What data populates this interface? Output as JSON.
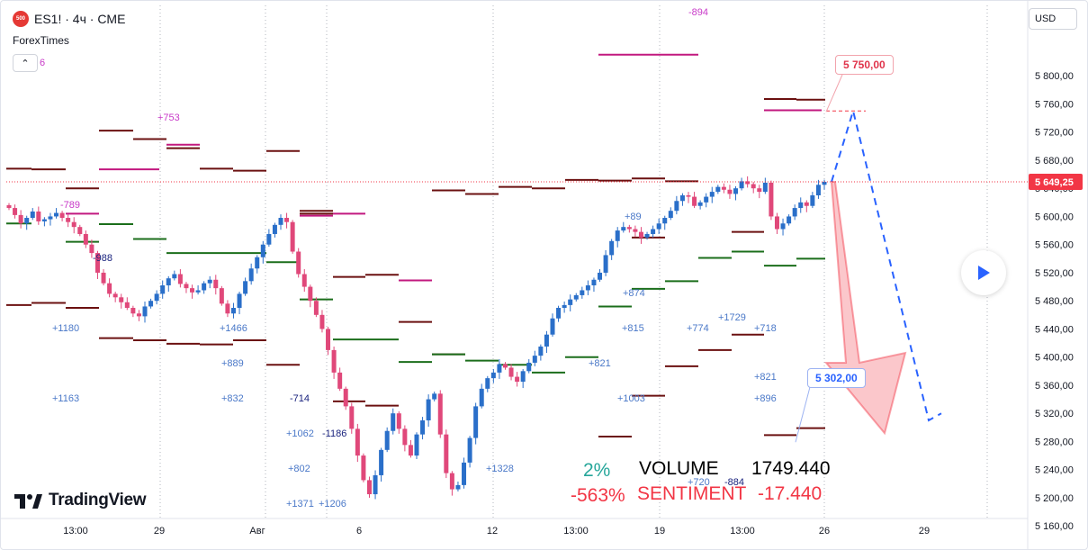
{
  "header": {
    "symbol_badge": "500",
    "symbol_text": "ES1! · 4ч · CME",
    "source": "ForexTimes",
    "collapse_count": "6"
  },
  "price_axis": {
    "currency": "USD",
    "ticks": [
      "5 800,00",
      "5 760,00",
      "5 720,00",
      "5 680,00",
      "5 640,00",
      "5 600,00",
      "5 560,00",
      "5 520,00",
      "5 480,00",
      "5 440,00",
      "5 400,00",
      "5 360,00",
      "5 320,00",
      "5 280,00",
      "5 240,00",
      "5 200,00",
      "5 160,00"
    ],
    "last_price": "5 649,25",
    "last_price_value": 5649.25,
    "colors": {
      "last_price_bg": "#f23645"
    }
  },
  "time_axis": {
    "labels": [
      "13:00",
      "29",
      "Авг",
      "6",
      "12",
      "13:00",
      "19",
      "13:00",
      "26",
      "29"
    ]
  },
  "annotations": {
    "target_up": "5 750,00",
    "target_down": "5 302,00",
    "level_labels": [
      "-894",
      "+753",
      "-789",
      "-988",
      "+1180",
      "+1466",
      "+889",
      "+832",
      "+1163",
      "-714",
      "+1062",
      "-1186",
      "+802",
      "+1371",
      "+1206",
      "+1328",
      "+874",
      "+815",
      "+821",
      "+1003",
      "+774",
      "+1729",
      "+718",
      "+821",
      "+896",
      "+720",
      "-884",
      "+89"
    ]
  },
  "stats": {
    "pct_top": "2%",
    "pct_bottom": "-563%",
    "volume_label": "VOLUME",
    "volume_value": "1749.440",
    "sentiment_label": "SENTIMENT",
    "sentiment_value": "-17.440",
    "colors": {
      "positive": "#26a69a",
      "negative": "#f23645",
      "text": "#000000"
    }
  },
  "branding": {
    "logo_text": "TradingView"
  },
  "chart_data": {
    "type": "candlestick",
    "title": "ES1! · 4ч · CME",
    "ylim": [
      5140,
      5830
    ],
    "y_ticks": [
      5800,
      5760,
      5720,
      5680,
      5640,
      5600,
      5560,
      5520,
      5480,
      5440,
      5400,
      5360,
      5320,
      5280,
      5240,
      5200,
      5160
    ],
    "x_ticks": [
      "13:00",
      "29",
      "Авг",
      "6",
      "12",
      "13:00",
      "19",
      "13:00",
      "26",
      "29"
    ],
    "grid": false,
    "colors": {
      "up": "#2a6fc9",
      "down": "#e0487a",
      "last_price_line": "#f23645"
    },
    "close_path": [
      5612,
      5602,
      5590,
      5598,
      5607,
      5593,
      5596,
      5600,
      5605,
      5598,
      5592,
      5585,
      5575,
      5560,
      5548,
      5520,
      5505,
      5490,
      5485,
      5478,
      5470,
      5462,
      5458,
      5472,
      5480,
      5490,
      5502,
      5512,
      5518,
      5504,
      5498,
      5492,
      5495,
      5505,
      5510,
      5498,
      5476,
      5462,
      5470,
      5490,
      5508,
      5526,
      5542,
      5560,
      5575,
      5588,
      5598,
      5592,
      5550,
      5518,
      5500,
      5480,
      5460,
      5440,
      5410,
      5378,
      5355,
      5330,
      5298,
      5260,
      5225,
      5205,
      5232,
      5268,
      5295,
      5320,
      5298,
      5275,
      5260,
      5290,
      5310,
      5340,
      5348,
      5290,
      5235,
      5212,
      5218,
      5250,
      5285,
      5330,
      5355,
      5370,
      5378,
      5390,
      5385,
      5372,
      5365,
      5380,
      5392,
      5402,
      5415,
      5432,
      5455,
      5470,
      5474,
      5482,
      5488,
      5495,
      5502,
      5510,
      5520,
      5545,
      5565,
      5580,
      5585,
      5582,
      5578,
      5570,
      5575,
      5582,
      5590,
      5598,
      5608,
      5622,
      5630,
      5628,
      5615,
      5620,
      5628,
      5635,
      5642,
      5638,
      5632,
      5640,
      5650,
      5646,
      5640,
      5635,
      5648,
      5600,
      5582,
      5590,
      5600,
      5612,
      5620,
      5615,
      5630,
      5645,
      5649.25
    ],
    "projection_up": {
      "from": 5649.25,
      "peak": 5750,
      "end": 5310
    },
    "projection_down": {
      "from": 5649.25,
      "target": 5302
    },
    "levels": [
      {
        "x0": 7,
        "x1": 35,
        "y": 5668,
        "c": "dark"
      },
      {
        "x0": 35,
        "x1": 73,
        "y": 5667,
        "c": "dark"
      },
      {
        "x0": 73,
        "x1": 110,
        "y": 5640,
        "c": "dark"
      },
      {
        "x0": 110,
        "x1": 148,
        "y": 5722,
        "c": "dark"
      },
      {
        "x0": 148,
        "x1": 185,
        "y": 5710,
        "c": "dark"
      },
      {
        "x0": 185,
        "x1": 222,
        "y": 5697,
        "c": "dark"
      },
      {
        "x0": 222,
        "x1": 259,
        "y": 5668,
        "c": "dark"
      },
      {
        "x0": 259,
        "x1": 296,
        "y": 5665,
        "c": "dark"
      },
      {
        "x0": 296,
        "x1": 333,
        "y": 5693,
        "c": "dark"
      },
      {
        "x0": 333,
        "x1": 370,
        "y": 5604,
        "c": "dark"
      },
      {
        "x0": 480,
        "x1": 517,
        "y": 5637,
        "c": "dark"
      },
      {
        "x0": 517,
        "x1": 554,
        "y": 5632,
        "c": "dark"
      },
      {
        "x0": 554,
        "x1": 591,
        "y": 5642,
        "c": "dark"
      },
      {
        "x0": 591,
        "x1": 628,
        "y": 5640,
        "c": "dark"
      },
      {
        "x0": 628,
        "x1": 665,
        "y": 5652,
        "c": "dark"
      },
      {
        "x0": 665,
        "x1": 702,
        "y": 5651,
        "c": "dark"
      },
      {
        "x0": 702,
        "x1": 739,
        "y": 5654,
        "c": "dark"
      },
      {
        "x0": 739,
        "x1": 776,
        "y": 5650,
        "c": "dark"
      },
      {
        "x0": 849,
        "x1": 885,
        "y": 5767,
        "c": "dark"
      },
      {
        "x0": 885,
        "x1": 917,
        "y": 5766,
        "c": "dark"
      },
      {
        "x0": 7,
        "x1": 35,
        "y": 5474,
        "c": "dark"
      },
      {
        "x0": 35,
        "x1": 73,
        "y": 5477,
        "c": "dark"
      },
      {
        "x0": 73,
        "x1": 110,
        "y": 5470,
        "c": "dark"
      },
      {
        "x0": 110,
        "x1": 148,
        "y": 5427,
        "c": "dark"
      },
      {
        "x0": 148,
        "x1": 185,
        "y": 5424,
        "c": "dark"
      },
      {
        "x0": 185,
        "x1": 222,
        "y": 5419,
        "c": "dark"
      },
      {
        "x0": 222,
        "x1": 259,
        "y": 5418,
        "c": "dark"
      },
      {
        "x0": 259,
        "x1": 296,
        "y": 5424,
        "c": "dark"
      },
      {
        "x0": 296,
        "x1": 333,
        "y": 5389,
        "c": "dark"
      },
      {
        "x0": 370,
        "x1": 406,
        "y": 5514,
        "c": "dark"
      },
      {
        "x0": 406,
        "x1": 443,
        "y": 5517,
        "c": "dark"
      },
      {
        "x0": 370,
        "x1": 406,
        "y": 5337,
        "c": "dark"
      },
      {
        "x0": 406,
        "x1": 443,
        "y": 5331,
        "c": "dark"
      },
      {
        "x0": 443,
        "x1": 480,
        "y": 5450,
        "c": "dark"
      },
      {
        "x0": 480,
        "x1": 517,
        "y": 5404,
        "c": "dark"
      },
      {
        "x0": 665,
        "x1": 702,
        "y": 5287,
        "c": "dark"
      },
      {
        "x0": 702,
        "x1": 739,
        "y": 5345,
        "c": "dark"
      },
      {
        "x0": 739,
        "x1": 776,
        "y": 5387,
        "c": "dark"
      },
      {
        "x0": 813,
        "x1": 849,
        "y": 5432,
        "c": "dark"
      },
      {
        "x0": 849,
        "x1": 885,
        "y": 5289,
        "c": "dark"
      },
      {
        "x0": 885,
        "x1": 917,
        "y": 5299,
        "c": "dark"
      },
      {
        "x0": 776,
        "x1": 813,
        "y": 5410,
        "c": "dark"
      },
      {
        "x0": 333,
        "x1": 370,
        "y": 5608,
        "c": "dark"
      },
      {
        "x0": 7,
        "x1": 35,
        "y": 5590,
        "c": "green"
      },
      {
        "x0": 73,
        "x1": 110,
        "y": 5564,
        "c": "green"
      },
      {
        "x0": 110,
        "x1": 148,
        "y": 5589,
        "c": "green"
      },
      {
        "x0": 148,
        "x1": 185,
        "y": 5568,
        "c": "green"
      },
      {
        "x0": 185,
        "x1": 296,
        "y": 5548,
        "c": "green"
      },
      {
        "x0": 296,
        "x1": 333,
        "y": 5535,
        "c": "green"
      },
      {
        "x0": 333,
        "x1": 370,
        "y": 5482,
        "c": "green"
      },
      {
        "x0": 370,
        "x1": 443,
        "y": 5425,
        "c": "green"
      },
      {
        "x0": 443,
        "x1": 480,
        "y": 5393,
        "c": "green"
      },
      {
        "x0": 480,
        "x1": 517,
        "y": 5404,
        "c": "green"
      },
      {
        "x0": 517,
        "x1": 554,
        "y": 5395,
        "c": "green"
      },
      {
        "x0": 554,
        "x1": 591,
        "y": 5389,
        "c": "green"
      },
      {
        "x0": 591,
        "x1": 628,
        "y": 5378,
        "c": "green"
      },
      {
        "x0": 628,
        "x1": 665,
        "y": 5400,
        "c": "green"
      },
      {
        "x0": 665,
        "x1": 702,
        "y": 5472,
        "c": "green"
      },
      {
        "x0": 702,
        "x1": 739,
        "y": 5497,
        "c": "green"
      },
      {
        "x0": 739,
        "x1": 776,
        "y": 5508,
        "c": "green"
      },
      {
        "x0": 776,
        "x1": 813,
        "y": 5541,
        "c": "green"
      },
      {
        "x0": 813,
        "x1": 849,
        "y": 5550,
        "c": "green"
      },
      {
        "x0": 849,
        "x1": 885,
        "y": 5530,
        "c": "green"
      },
      {
        "x0": 885,
        "x1": 917,
        "y": 5540,
        "c": "green"
      },
      {
        "x0": 665,
        "x1": 776,
        "y": 5830,
        "c": "pink"
      },
      {
        "x0": 110,
        "x1": 177,
        "y": 5667,
        "c": "pink"
      },
      {
        "x0": 185,
        "x1": 222,
        "y": 5702,
        "c": "pink"
      },
      {
        "x0": 333,
        "x1": 370,
        "y": 5601,
        "c": "pink"
      },
      {
        "x0": 370,
        "x1": 406,
        "y": 5604,
        "c": "pink"
      },
      {
        "x0": 443,
        "x1": 480,
        "y": 5509,
        "c": "pink"
      },
      {
        "x0": 849,
        "x1": 913,
        "y": 5751,
        "c": "pink"
      },
      {
        "x0": 73,
        "x1": 110,
        "y": 5604,
        "c": "pink"
      },
      {
        "x0": 813,
        "x1": 849,
        "y": 5578,
        "c": "dark"
      },
      {
        "x0": 702,
        "x1": 739,
        "y": 5570,
        "c": "dark"
      }
    ]
  }
}
